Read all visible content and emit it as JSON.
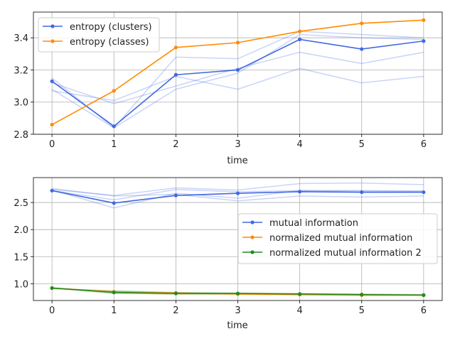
{
  "chart_data": [
    {
      "type": "line",
      "xlabel": "time",
      "ylabel": "",
      "x": [
        0,
        1,
        2,
        3,
        4,
        5,
        6
      ],
      "xlim": [
        -0.3,
        6.3
      ],
      "ylim": [
        2.8,
        3.56
      ],
      "xticks": [
        "0",
        "1",
        "2",
        "3",
        "4",
        "5",
        "6"
      ],
      "yticks": [
        2.8,
        3.0,
        3.2,
        3.4
      ],
      "ytick_labels": [
        "2.8",
        "3.0",
        "3.2",
        "3.4"
      ],
      "grid": true,
      "legend": "upper left",
      "series": [
        {
          "name": "entropy (clusters)",
          "color": "#4169e1",
          "marker": true,
          "values": [
            3.13,
            2.85,
            3.17,
            3.2,
            3.39,
            3.33,
            3.38
          ]
        },
        {
          "name": "entropy (classes)",
          "color": "#ff8c00",
          "marker": true,
          "values": [
            2.86,
            3.07,
            3.34,
            3.37,
            3.44,
            3.49,
            3.51
          ]
        }
      ],
      "faint_series": [
        {
          "color": "#4169e1",
          "values": [
            3.15,
            2.84,
            3.28,
            3.27,
            3.44,
            3.42,
            3.4
          ]
        },
        {
          "color": "#4169e1",
          "values": [
            3.12,
            2.99,
            3.1,
            3.21,
            3.31,
            3.24,
            3.31
          ]
        },
        {
          "color": "#4169e1",
          "values": [
            3.08,
            2.84,
            3.08,
            3.18,
            3.42,
            3.4,
            3.39
          ]
        },
        {
          "color": "#4169e1",
          "values": [
            3.07,
            3.01,
            3.16,
            3.08,
            3.21,
            3.12,
            3.16
          ]
        }
      ]
    },
    {
      "type": "line",
      "xlabel": "time",
      "ylabel": "",
      "x": [
        0,
        1,
        2,
        3,
        4,
        5,
        6
      ],
      "xlim": [
        -0.3,
        6.3
      ],
      "ylim": [
        0.69,
        2.96
      ],
      "xticks": [
        "0",
        "1",
        "2",
        "3",
        "4",
        "5",
        "6"
      ],
      "yticks": [
        1.0,
        1.5,
        2.0,
        2.5
      ],
      "ytick_labels": [
        "1.0",
        "1.5",
        "2.0",
        "2.5"
      ],
      "grid": true,
      "legend": "center right",
      "series": [
        {
          "name": "mutual information",
          "color": "#4169e1",
          "marker": true,
          "values": [
            2.72,
            2.49,
            2.63,
            2.67,
            2.7,
            2.69,
            2.69
          ]
        },
        {
          "name": "normalized mutual information",
          "color": "#ff8c00",
          "marker": true,
          "values": [
            0.92,
            0.85,
            0.83,
            0.81,
            0.8,
            0.79,
            0.79
          ]
        },
        {
          "name": "normalized mutual information 2",
          "color": "#228b22",
          "marker": true,
          "values": [
            0.92,
            0.84,
            0.82,
            0.82,
            0.81,
            0.8,
            0.79
          ]
        }
      ],
      "faint_series": [
        {
          "color": "#4169e1",
          "values": [
            2.74,
            2.63,
            2.77,
            2.73,
            2.85,
            2.86,
            2.83
          ]
        },
        {
          "color": "#4169e1",
          "values": [
            2.73,
            2.4,
            2.67,
            2.58,
            2.72,
            2.72,
            2.71
          ]
        },
        {
          "color": "#4169e1",
          "values": [
            2.76,
            2.62,
            2.65,
            2.53,
            2.62,
            2.6,
            2.62
          ]
        },
        {
          "color": "#4169e1",
          "values": [
            2.72,
            2.55,
            2.74,
            2.7,
            2.72,
            2.71,
            2.71
          ]
        },
        {
          "color": "#ff8c00",
          "values": [
            0.91,
            0.86,
            0.83,
            0.82,
            0.81,
            0.8,
            0.8
          ]
        },
        {
          "color": "#ff8c00",
          "values": [
            0.93,
            0.83,
            0.81,
            0.8,
            0.79,
            0.78,
            0.78
          ]
        },
        {
          "color": "#228b22",
          "values": [
            0.91,
            0.87,
            0.84,
            0.83,
            0.82,
            0.81,
            0.8
          ]
        },
        {
          "color": "#228b22",
          "values": [
            0.92,
            0.82,
            0.81,
            0.81,
            0.8,
            0.79,
            0.79
          ]
        }
      ]
    }
  ]
}
